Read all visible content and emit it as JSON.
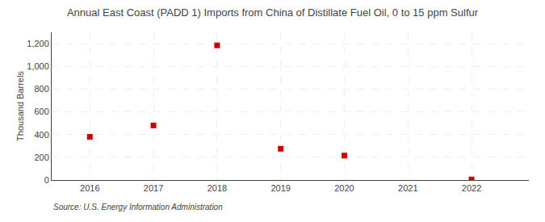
{
  "chart_data": {
    "type": "scatter",
    "title": "Annual East Coast (PADD 1) Imports from China of Distillate Fuel Oil, 0 to 15 ppm Sulfur",
    "y_label": "Thousand Barrels",
    "annotations": [
      "Source: U.S. Energy Information Administration"
    ],
    "x": [
      2016,
      2017,
      2018,
      2019,
      2020,
      2022
    ],
    "values": [
      380,
      480,
      1185,
      275,
      215,
      5
    ],
    "color": "#cc0000",
    "marker": "square",
    "xlim": [
      2015.4,
      2022.9
    ],
    "xticks": [
      2016,
      2017,
      2018,
      2019,
      2020,
      2021,
      2022
    ],
    "ylim": [
      0,
      1300
    ],
    "yticks": [
      0,
      200,
      400,
      600,
      800,
      {
        "value": 1000,
        "label": "1,000"
      },
      {
        "value": 1200,
        "label": "1,200"
      }
    ],
    "grid": true
  }
}
